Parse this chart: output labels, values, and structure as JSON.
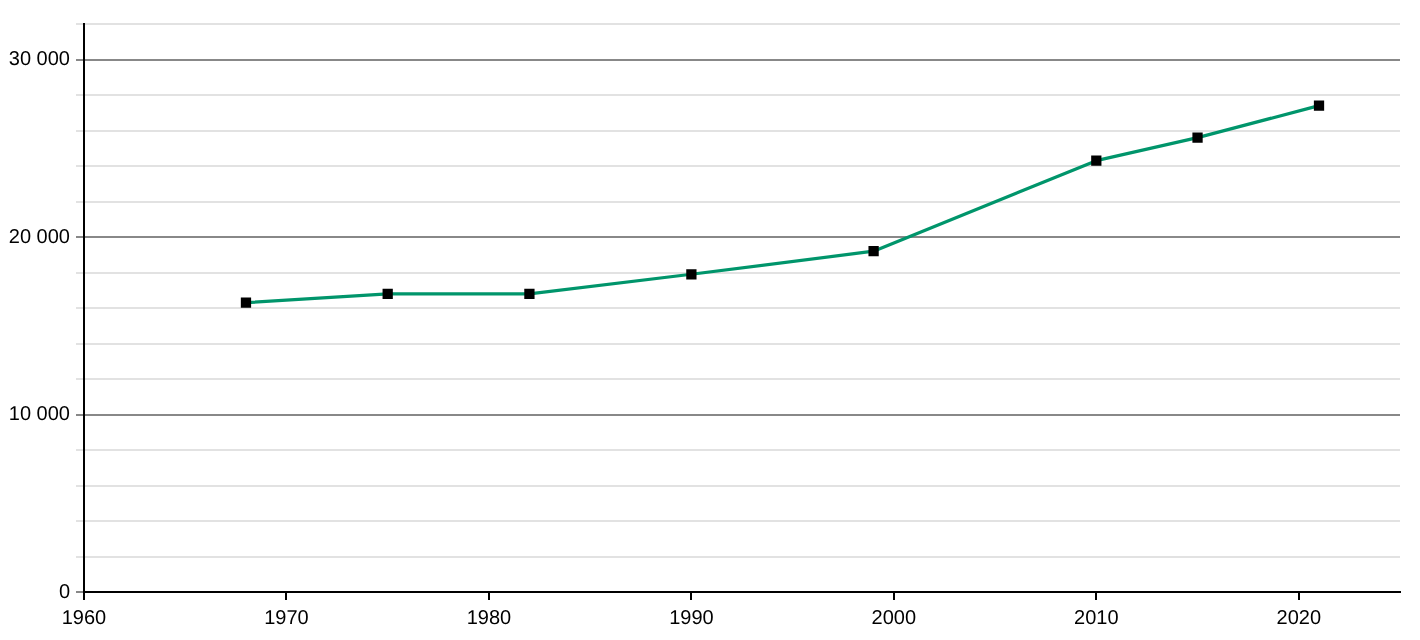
{
  "chart_data": {
    "type": "line",
    "x": [
      1968,
      1975,
      1982,
      1990,
      1999,
      2010,
      2015,
      2021
    ],
    "series": [
      {
        "color": "#00956b",
        "values": [
          16300,
          16800,
          16800,
          17900,
          19200,
          24300,
          25600,
          27400
        ]
      }
    ],
    "xlim": [
      1960,
      2025
    ],
    "xticks": [
      1960,
      1970,
      1980,
      1990,
      2000,
      2010,
      2020
    ],
    "ylim": [
      0,
      32000
    ],
    "yticks": [
      {
        "value": 0,
        "label": "0"
      },
      {
        "value": 2000,
        "label": null
      },
      {
        "value": 4000,
        "label": null
      },
      {
        "value": 6000,
        "label": null
      },
      {
        "value": 8000,
        "label": null
      },
      {
        "value": 10000,
        "label": "10 000"
      },
      {
        "value": 12000,
        "label": null
      },
      {
        "value": 14000,
        "label": null
      },
      {
        "value": 16000,
        "label": null
      },
      {
        "value": 18000,
        "label": null
      },
      {
        "value": 20000,
        "label": "20 000"
      },
      {
        "value": 22000,
        "label": null
      },
      {
        "value": 24000,
        "label": null
      },
      {
        "value": 26000,
        "label": null
      },
      {
        "value": 28000,
        "label": null
      },
      {
        "value": 30000,
        "label": "30 000"
      },
      {
        "value": 32000,
        "label": null
      }
    ],
    "grid": "y",
    "marker": "square",
    "line_style": "solid",
    "legend": false
  }
}
